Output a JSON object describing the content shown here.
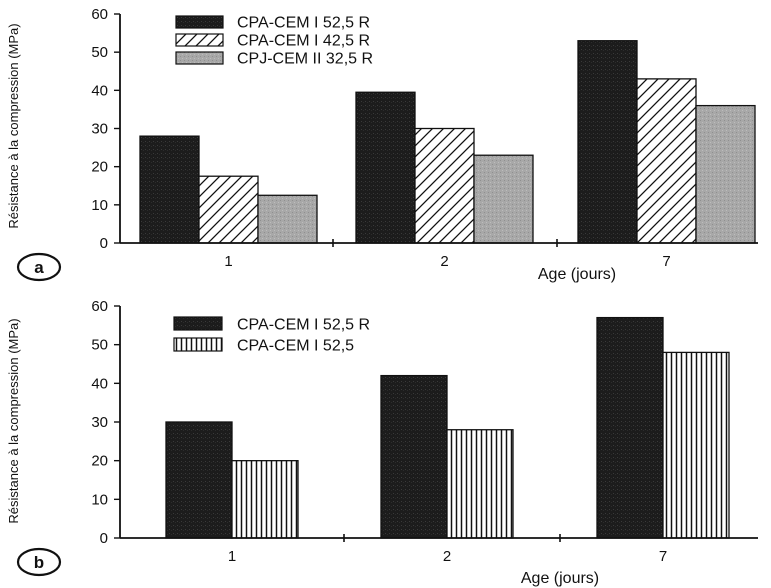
{
  "chart_data": [
    {
      "type": "bar",
      "panel_label": "a",
      "categories": [
        "1",
        "2",
        "7"
      ],
      "xlabel": "Age  (jours)",
      "ylabel": "Résistance à la compression (MPa)",
      "ylim": [
        0,
        60
      ],
      "yticks": [
        "0",
        "10",
        "20",
        "30",
        "40",
        "50",
        "60"
      ],
      "legend_position": "top-center",
      "series": [
        {
          "name": "CPA-CEM I 52,5 R",
          "values": [
            28,
            39.5,
            53
          ],
          "pattern": "solid-dark",
          "color": "#1c1c1c"
        },
        {
          "name": "CPA-CEM I 42,5 R",
          "values": [
            17.5,
            30,
            43
          ],
          "pattern": "diagonal-hatch",
          "color": "#ffffff"
        },
        {
          "name": "CPJ-CEM II 32,5 R",
          "values": [
            12.5,
            23,
            36
          ],
          "pattern": "solid-gray",
          "color": "#a8a8a8"
        }
      ]
    },
    {
      "type": "bar",
      "panel_label": "b",
      "categories": [
        "1",
        "2",
        "7"
      ],
      "xlabel": "Age  (jours)",
      "ylabel": "Résistance à la compression (MPa)",
      "ylim": [
        0,
        60
      ],
      "yticks": [
        "0",
        "10",
        "20",
        "30",
        "40",
        "50",
        "60"
      ],
      "legend_position": "top-left",
      "series": [
        {
          "name": "CPA-CEM I 52,5 R",
          "values": [
            30,
            42,
            57
          ],
          "pattern": "solid-dark",
          "color": "#1c1c1c"
        },
        {
          "name": "CPA-CEM I 52,5",
          "values": [
            20,
            28,
            48
          ],
          "pattern": "vertical-stripes",
          "color": "#ffffff"
        }
      ]
    }
  ]
}
